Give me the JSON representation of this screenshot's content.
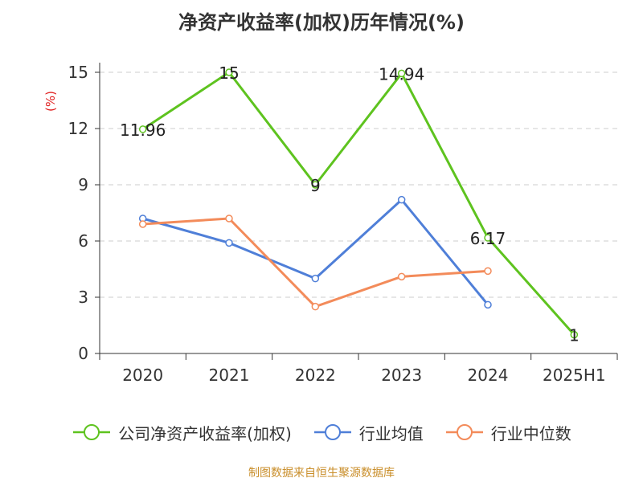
{
  "title": "净资产收益率(加权)历年情况(%)",
  "footer": "制图数据来自恒生聚源数据库",
  "chart_data": {
    "type": "line",
    "title": "净资产收益率(加权)历年情况(%)",
    "ylabel": "(%)",
    "xlabel": "",
    "categories": [
      "2020",
      "2021",
      "2022",
      "2023",
      "2024",
      "2025H1"
    ],
    "ylim": [
      0,
      15
    ],
    "yticks": [
      0,
      3,
      6,
      9,
      12,
      15
    ],
    "grid": true,
    "legend_position": "bottom",
    "series": [
      {
        "name": "公司净资产收益率(加权)",
        "color": "#5ec31f",
        "values": [
          11.96,
          15,
          9,
          14.94,
          6.17,
          1
        ],
        "labels": [
          "11.96",
          "15",
          "9",
          "14.94",
          "6.17",
          "1"
        ]
      },
      {
        "name": "行业均值",
        "color": "#4f7fd8",
        "values": [
          7.2,
          5.9,
          4.0,
          8.2,
          2.6,
          null
        ]
      },
      {
        "name": "行业中位数",
        "color": "#f38b5a",
        "values": [
          6.9,
          7.2,
          2.5,
          4.1,
          4.4,
          null
        ]
      }
    ]
  }
}
